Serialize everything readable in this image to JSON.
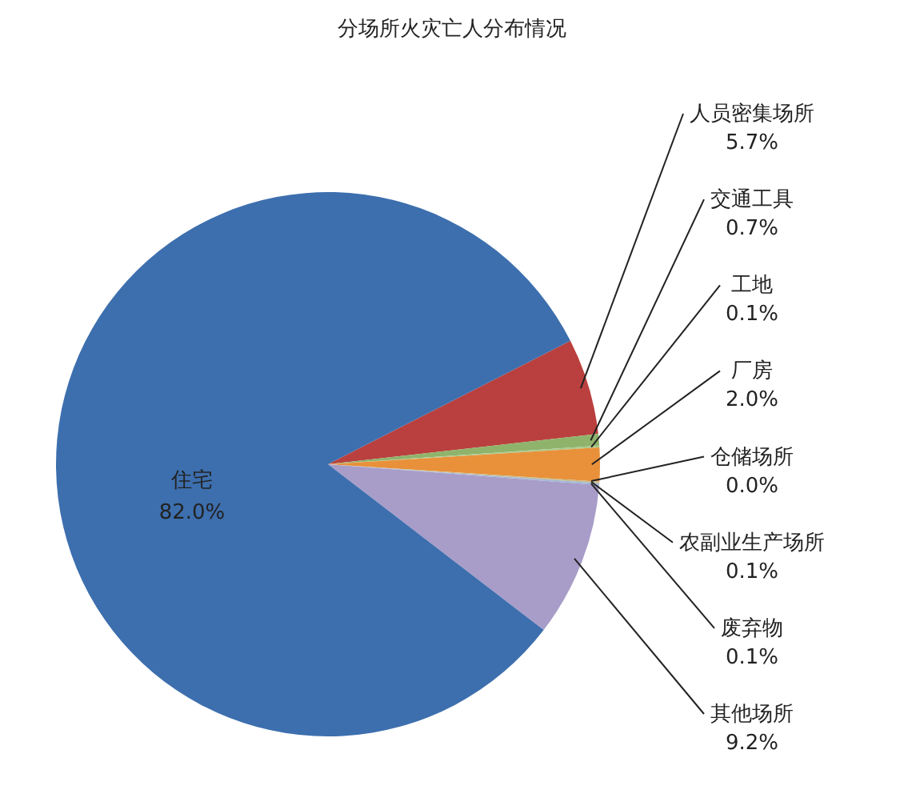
{
  "chart_data": {
    "type": "pie",
    "title": "分场所火灾亡人分布情况",
    "categories": [
      "人员密集场所",
      "交通工具",
      "工地",
      "厂房",
      "仓储场所",
      "农副业生产场所",
      "废弃物",
      "其他场所",
      "住宅"
    ],
    "values": [
      5.7,
      0.7,
      0.1,
      2.0,
      0.0,
      0.1,
      0.1,
      9.2,
      82.0
    ],
    "value_labels": [
      "5.7%",
      "0.7%",
      "0.1%",
      "2.0%",
      "0.0%",
      "0.1%",
      "0.1%",
      "9.2%",
      "82.0%"
    ],
    "colors": [
      "#b9403e",
      "#8fb36b",
      "#a9c98c",
      "#e8913a",
      "#f2d3a8",
      "#c9b98a",
      "#9fb8d8",
      "#a89dc9",
      "#3d6fae"
    ]
  }
}
